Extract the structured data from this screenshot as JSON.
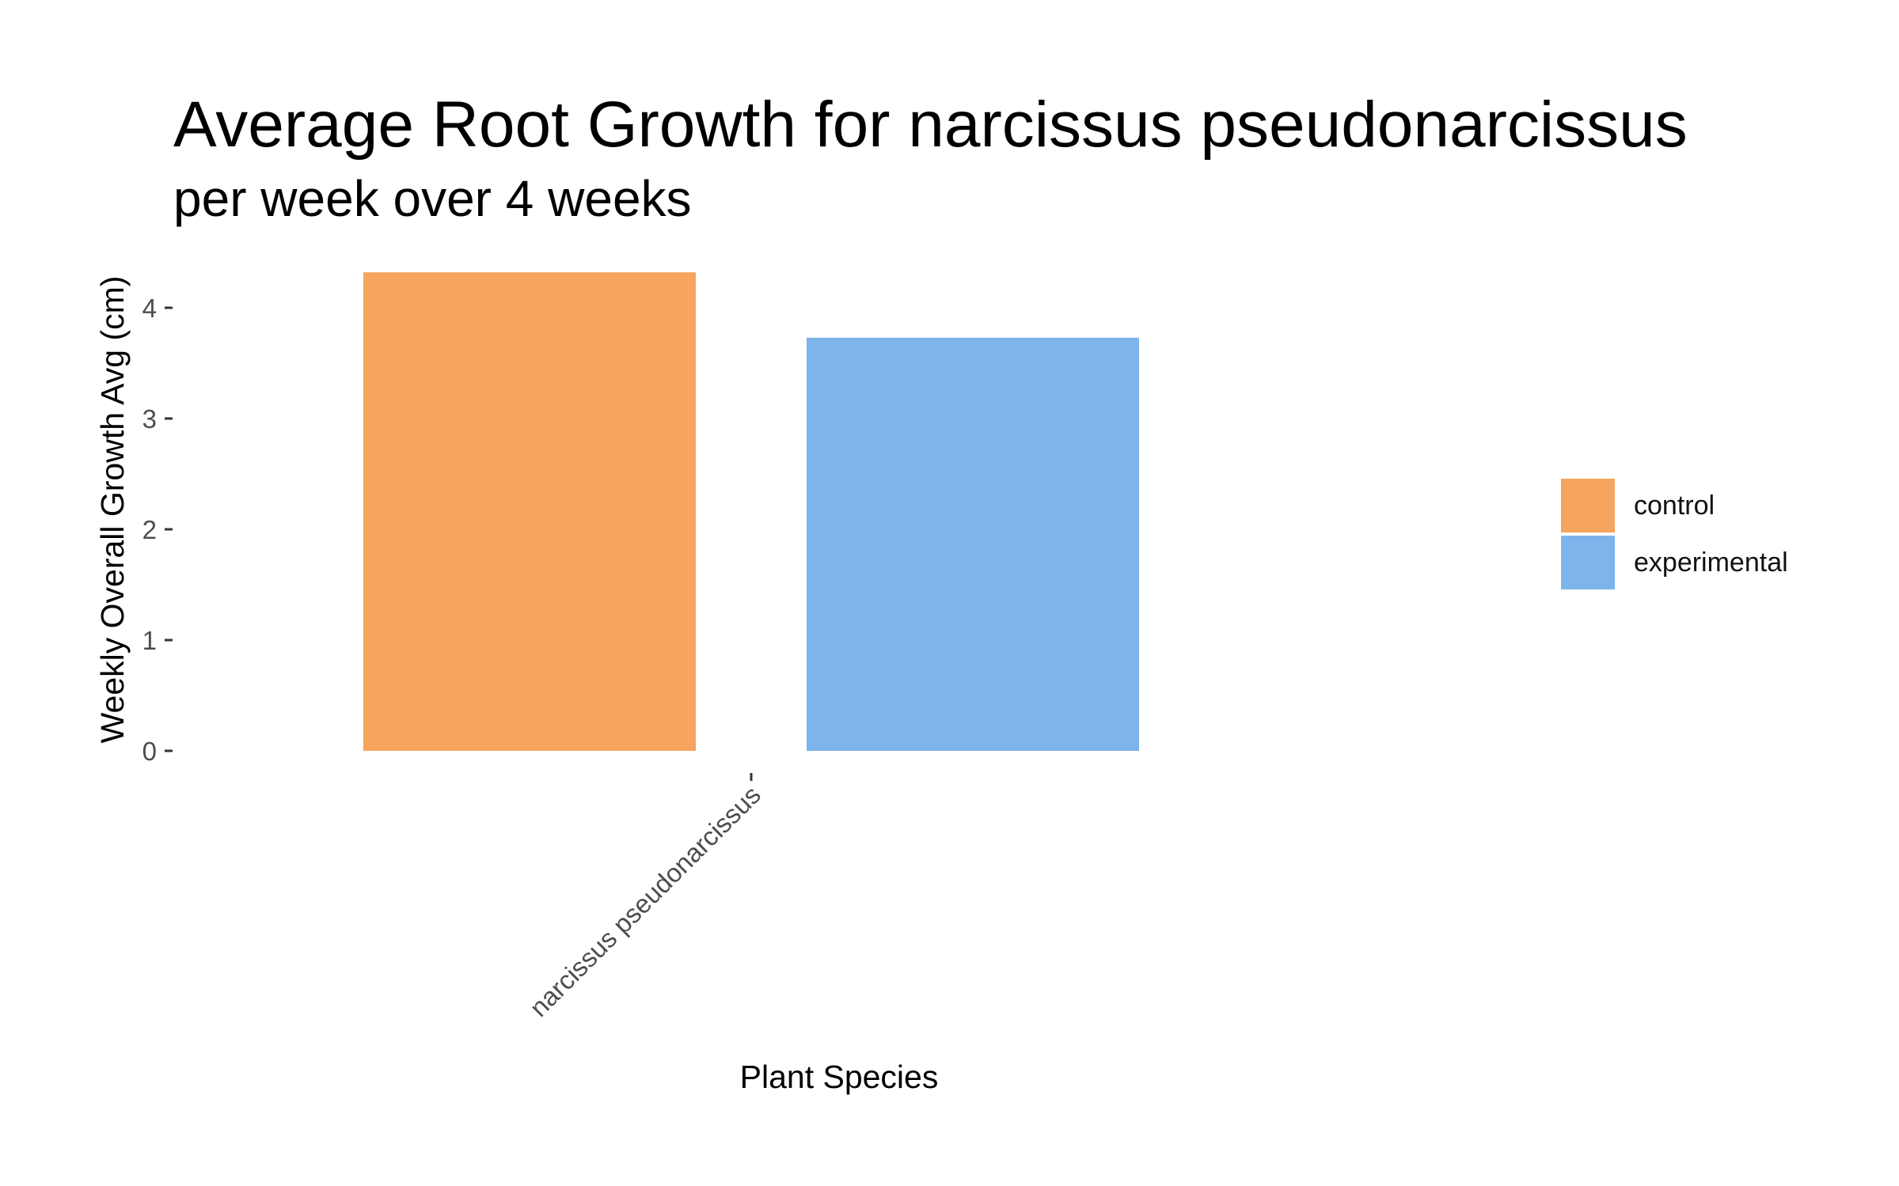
{
  "chart_data": {
    "type": "bar",
    "title": "Average Root Growth for narcissus pseudonarcissus",
    "subtitle": "per week over 4 weeks",
    "xlabel": "Plant Species",
    "ylabel": "Weekly Overall Growth Avg (cm)",
    "categories": [
      "narcissus pseudonarcissus"
    ],
    "series": [
      {
        "name": "control",
        "color": "#f6a45e",
        "values": [
          4.32
        ]
      },
      {
        "name": "experimental",
        "color": "#7db4ec",
        "values": [
          3.73
        ]
      }
    ],
    "ylim": [
      0,
      4.4
    ],
    "yticks": [
      0,
      1,
      2,
      3,
      4
    ],
    "ytick_labels": [
      "0",
      "1",
      "2",
      "3",
      "4"
    ],
    "grid": false,
    "legend_position": "right"
  }
}
